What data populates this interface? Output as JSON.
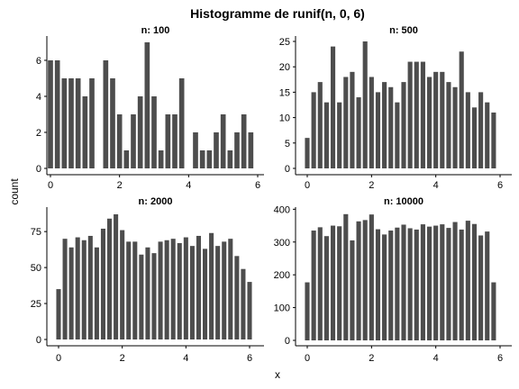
{
  "title": "Histogramme de runif(n, 0, 6)",
  "xlabel": "x",
  "ylabel": "count",
  "chart_data": [
    {
      "type": "bar",
      "title": "n: 100",
      "xlim": [
        0,
        6
      ],
      "ylim": [
        0,
        7
      ],
      "xticks": [
        0,
        2,
        4,
        6
      ],
      "yticks": [
        0,
        2,
        4,
        6
      ],
      "bin_width": 0.2,
      "values": [
        6,
        6,
        5,
        5,
        5,
        4,
        5,
        0,
        6,
        5,
        3,
        1,
        3,
        4,
        7,
        4,
        1,
        3,
        3,
        5,
        0,
        2,
        1,
        1,
        2,
        3,
        1,
        2,
        3,
        2
      ]
    },
    {
      "type": "bar",
      "title": "n: 500",
      "xlim": [
        0,
        6
      ],
      "ylim": [
        0,
        25
      ],
      "xticks": [
        0,
        2,
        4,
        6
      ],
      "yticks": [
        0,
        5,
        10,
        15,
        20,
        25
      ],
      "bin_width": 0.2,
      "values": [
        6,
        15,
        17,
        13,
        24,
        13,
        18,
        19,
        14,
        25,
        18,
        15,
        17,
        16,
        13,
        17,
        21,
        21,
        21,
        18,
        19,
        19,
        17,
        16,
        23,
        15,
        12,
        15,
        13,
        11
      ]
    },
    {
      "type": "bar",
      "title": "n: 2000",
      "xlim": [
        0,
        6
      ],
      "ylim": [
        0,
        87
      ],
      "xticks": [
        0,
        2,
        4,
        6
      ],
      "yticks": [
        0,
        25,
        50,
        75
      ],
      "bin_width": 0.2,
      "values": [
        35,
        70,
        64,
        71,
        69,
        72,
        64,
        77,
        84,
        87,
        76,
        68,
        68,
        59,
        64,
        60,
        68,
        69,
        70,
        67,
        71,
        65,
        72,
        63,
        74,
        65,
        68,
        70,
        58,
        49,
        40
      ]
    },
    {
      "type": "bar",
      "title": "n: 10000",
      "xlim": [
        0,
        6
      ],
      "ylim": [
        0,
        390
      ],
      "xticks": [
        0,
        2,
        4,
        6
      ],
      "yticks": [
        0,
        100,
        200,
        300,
        400
      ],
      "bin_width": 0.2,
      "values": [
        177,
        335,
        345,
        318,
        350,
        348,
        385,
        305,
        363,
        367,
        384,
        339,
        323,
        335,
        344,
        353,
        342,
        338,
        354,
        347,
        350,
        354,
        343,
        361,
        338,
        365,
        355,
        320,
        332,
        177
      ]
    }
  ]
}
